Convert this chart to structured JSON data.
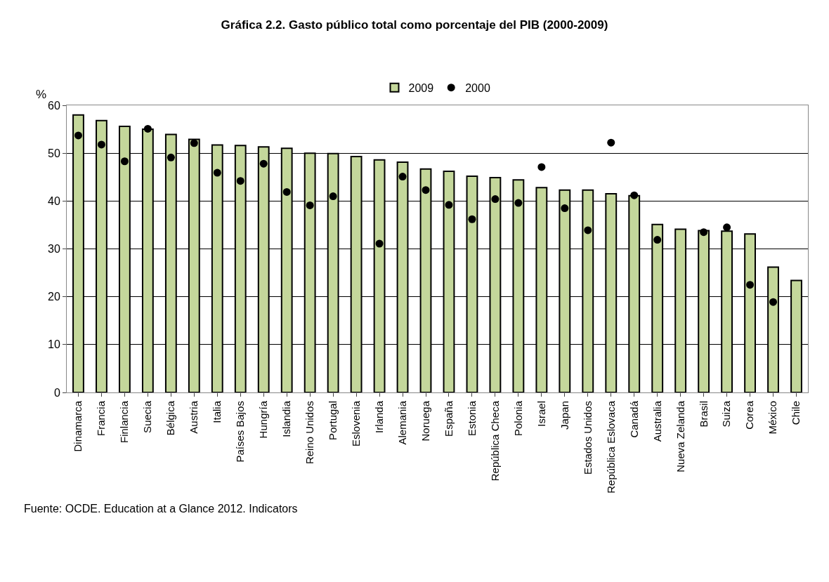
{
  "chart_data": {
    "type": "bar",
    "title": "Gráfica 2.2. Gasto público total como porcentaje del PIB (2000-2009)",
    "ylabel": "%",
    "categories": [
      "Dinamarca",
      "Francia",
      "Finlancia",
      "Suecia",
      "Bélgica",
      "Austria",
      "Italia",
      "Países Bajos",
      "Hungría",
      "Islandia",
      "Reino Unidos",
      "Portugal",
      "Eslovenia",
      "Irlanda",
      "Alemania",
      "Noruega",
      "España",
      "Estonia",
      "República Checa",
      "Polonia",
      "Israel",
      "Japan",
      "Estados Unidos",
      "República Eslovaca",
      "Canadá",
      "Australia",
      "Nueva Zelanda",
      "Brasil",
      "Suiza",
      "Corea",
      "México",
      "Chile"
    ],
    "series": [
      {
        "name": "2009",
        "color": "#c4d79b",
        "values": [
          58.0,
          56.8,
          55.6,
          55.0,
          53.9,
          52.9,
          51.7,
          51.6,
          51.3,
          51.0,
          50.0,
          49.9,
          49.3,
          48.6,
          48.1,
          46.7,
          46.2,
          45.2,
          44.9,
          44.4,
          42.8,
          42.3,
          42.3,
          41.5,
          41.1,
          35.1,
          34.1,
          33.8,
          33.7,
          33.1,
          26.2,
          23.4
        ]
      },
      {
        "name": "2000",
        "type": "scatter",
        "color": "#000000",
        "marker": "circle",
        "values": [
          53.7,
          51.8,
          48.3,
          55.1,
          49.1,
          52.1,
          45.9,
          44.2,
          47.8,
          41.9,
          39.1,
          41.0,
          null,
          31.1,
          45.1,
          42.3,
          39.2,
          36.2,
          40.4,
          39.6,
          47.1,
          38.5,
          33.9,
          52.2,
          41.2,
          31.9,
          null,
          33.5,
          34.5,
          22.5,
          18.9,
          null
        ]
      }
    ],
    "ylim": [
      0,
      60
    ],
    "yticks": [
      0,
      10,
      20,
      30,
      40,
      50,
      60
    ],
    "grid": "y",
    "legend": "top",
    "annotations": [
      "Fuente: OCDE. Education at a Glance 2012. Indicators"
    ]
  }
}
